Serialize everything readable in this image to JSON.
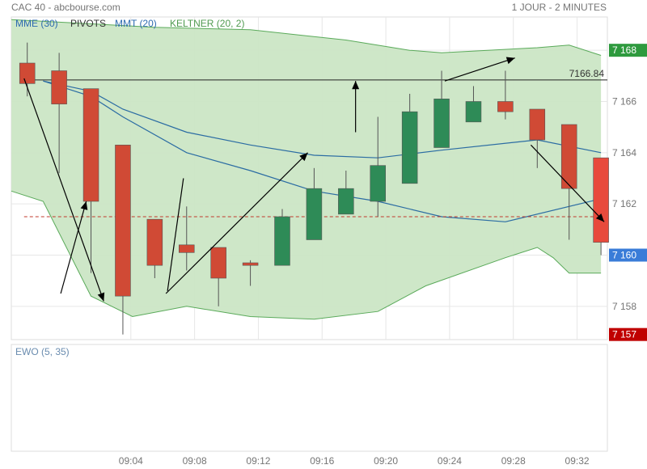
{
  "header": {
    "title": "CAC 40 - abcbourse.com",
    "period": "1 JOUR - 2 MINUTES"
  },
  "legend": [
    {
      "label": "MME (30)",
      "color": "#2e6bb0"
    },
    {
      "label": "PIVOTS",
      "color": "#333333"
    },
    {
      "label": "MMT (20)",
      "color": "#2e6bb0"
    },
    {
      "label": "KELTNER (20, 2)",
      "color": "#4f9a4f"
    }
  ],
  "colors": {
    "up": "#2e8b57",
    "down": "#d04a35",
    "keltner_fill": "#cbe6c5",
    "keltner_line": "#5aaa5a",
    "ma_line": "#2b6ca3",
    "last_badge": "#e84a3c",
    "high_badge": "#2e9a3e",
    "current_badge": "#3a7cd8",
    "low_badge": "#c00000"
  },
  "ewo_label": "EWO (5, 35)",
  "chart_data": {
    "type": "candlestick",
    "y_ticks": [
      "7 158",
      "7 160",
      "7 162",
      "7 164",
      "7 166",
      "7 168"
    ],
    "y_tick_values": [
      7158,
      7160,
      7162,
      7164,
      7166,
      7168
    ],
    "ylim": [
      7156.7,
      7169.3
    ],
    "x_ticks": [
      "09:04",
      "09:08",
      "09:12",
      "09:16",
      "09:20",
      "09:24",
      "09:28",
      "09:32"
    ],
    "xlim": [
      0,
      18.7
    ],
    "x_tick_positions": [
      3.75,
      5.75,
      7.75,
      9.75,
      11.75,
      13.75,
      15.75,
      17.75
    ],
    "candles": [
      {
        "o": 7167.5,
        "h": 7168.3,
        "l": 7166.2,
        "c": 7166.7
      },
      {
        "o": 7167.2,
        "h": 7167.9,
        "l": 7163.2,
        "c": 7165.9
      },
      {
        "o": 7166.5,
        "h": 7166.5,
        "l": 7159.3,
        "c": 7162.1
      },
      {
        "o": 7164.3,
        "h": 7164.3,
        "l": 7156.9,
        "c": 7158.4
      },
      {
        "o": 7161.4,
        "h": 7161.4,
        "l": 7159.1,
        "c": 7159.6
      },
      {
        "o": 7160.4,
        "h": 7161.9,
        "l": 7159.4,
        "c": 7160.1
      },
      {
        "o": 7160.3,
        "h": 7160.3,
        "l": 7158.0,
        "c": 7159.1
      },
      {
        "o": 7159.7,
        "h": 7159.8,
        "l": 7158.8,
        "c": 7159.6
      },
      {
        "o": 7159.6,
        "h": 7161.8,
        "l": 7159.6,
        "c": 7161.5
      },
      {
        "o": 7160.6,
        "h": 7163.4,
        "l": 7160.6,
        "c": 7162.6
      },
      {
        "o": 7161.6,
        "h": 7163.3,
        "l": 7161.6,
        "c": 7162.6
      },
      {
        "o": 7162.1,
        "h": 7165.4,
        "l": 7161.5,
        "c": 7163.5
      },
      {
        "o": 7162.8,
        "h": 7166.3,
        "l": 7162.8,
        "c": 7165.6
      },
      {
        "o": 7164.2,
        "h": 7167.2,
        "l": 7164.2,
        "c": 7166.1
      },
      {
        "o": 7165.2,
        "h": 7166.6,
        "l": 7165.2,
        "c": 7166.0
      },
      {
        "o": 7166.0,
        "h": 7167.2,
        "l": 7165.3,
        "c": 7165.6
      },
      {
        "o": 7165.7,
        "h": 7165.7,
        "l": 7163.4,
        "c": 7164.5
      },
      {
        "o": 7165.1,
        "h": 7165.1,
        "l": 7160.6,
        "c": 7162.6
      },
      {
        "o": 7163.8,
        "h": 7163.8,
        "l": 7160.0,
        "c": 7160.5
      }
    ],
    "keltner_upper": [
      [
        0,
        7169.2
      ],
      [
        4.5,
        7168.9
      ],
      [
        7.5,
        7168.8
      ],
      [
        10.5,
        7168.4
      ],
      [
        12.5,
        7168.0
      ],
      [
        13.5,
        7167.9
      ],
      [
        16.5,
        7168.1
      ],
      [
        17.5,
        7168.2
      ],
      [
        18.5,
        7167.8
      ]
    ],
    "keltner_lower": [
      [
        0,
        7162.5
      ],
      [
        1.0,
        7162.1
      ],
      [
        2.5,
        7158.4
      ],
      [
        3.8,
        7157.6
      ],
      [
        5.5,
        7158.0
      ],
      [
        7.5,
        7157.6
      ],
      [
        9.5,
        7157.5
      ],
      [
        11.5,
        7157.8
      ],
      [
        13.0,
        7158.8
      ],
      [
        15.5,
        7159.9
      ],
      [
        16.5,
        7160.3
      ],
      [
        17.0,
        7159.9
      ],
      [
        17.5,
        7159.3
      ],
      [
        18.5,
        7159.3
      ]
    ],
    "mme_30": [
      [
        1,
        7166.8
      ],
      [
        2.5,
        7166.4
      ],
      [
        3.5,
        7165.7
      ],
      [
        5.5,
        7164.8
      ],
      [
        7.5,
        7164.3
      ],
      [
        9.5,
        7163.9
      ],
      [
        11.5,
        7163.8
      ],
      [
        13.5,
        7164.1
      ],
      [
        16.5,
        7164.5
      ],
      [
        18.5,
        7164.0
      ]
    ],
    "mmt_20": [
      [
        1,
        7166.8
      ],
      [
        2.5,
        7166.2
      ],
      [
        3.5,
        7165.4
      ],
      [
        5.5,
        7164.0
      ],
      [
        7.5,
        7163.3
      ],
      [
        9.5,
        7162.5
      ],
      [
        11.5,
        7162.1
      ],
      [
        13.5,
        7161.5
      ],
      [
        15.5,
        7161.3
      ],
      [
        18.5,
        7162.2
      ]
    ],
    "pivot_level": {
      "value": 7166.84,
      "label": "7166.84",
      "from_x": 0.4
    },
    "last_price_level": 7161.5,
    "price_badges": [
      {
        "label": "7 168",
        "value": 7168.0,
        "kind": "high"
      },
      {
        "label": "7 160",
        "value": 7160.0,
        "kind": "current"
      },
      {
        "label": "7 157",
        "value": 7156.9,
        "kind": "low"
      }
    ],
    "trend_arrows": [
      {
        "from": [
          0.4,
          7166.9
        ],
        "to": [
          2.9,
          7158.2
        ],
        "head": true
      },
      {
        "from": [
          1.55,
          7158.5
        ],
        "to": [
          2.35,
          7162.1
        ],
        "head": true
      },
      {
        "from": [
          4.85,
          7158.5
        ],
        "to": [
          9.3,
          7164.0
        ],
        "head": true
      },
      {
        "from": [
          4.9,
          7158.6
        ],
        "to": [
          5.4,
          7163.0
        ],
        "head": false
      },
      {
        "from": [
          10.8,
          7164.8
        ],
        "to": [
          10.8,
          7166.8
        ],
        "head": true
      },
      {
        "from": [
          13.6,
          7166.8
        ],
        "to": [
          15.8,
          7167.7
        ],
        "head": true
      },
      {
        "from": [
          16.3,
          7164.3
        ],
        "to": [
          18.6,
          7161.3
        ],
        "head": true
      }
    ]
  }
}
